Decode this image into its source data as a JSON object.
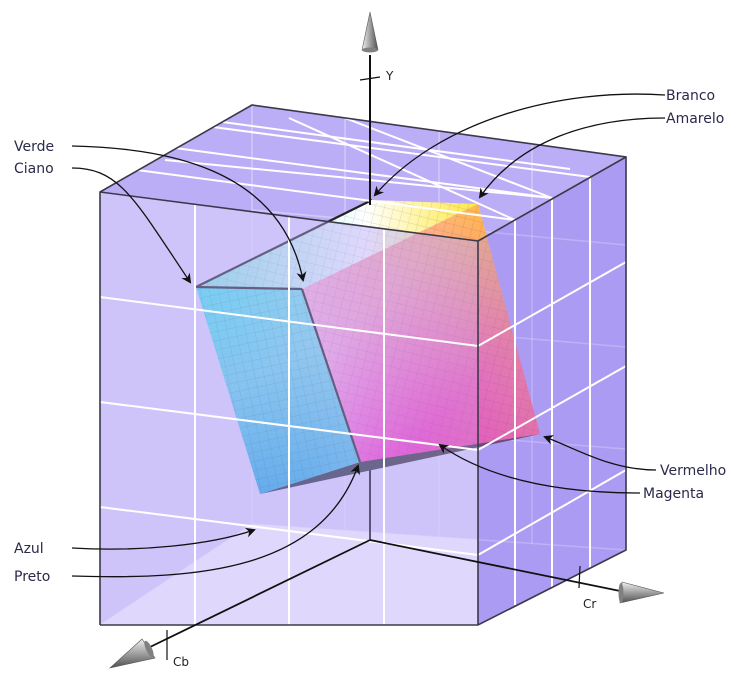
{
  "axes": {
    "y": "Y",
    "cr": "Cr",
    "cb": "Cb"
  },
  "corners": {
    "branco": "Branco",
    "amarelo": "Amarelo",
    "verde": "Verde",
    "ciano": "Ciano",
    "vermelho": "Vermelho",
    "magenta": "Magenta",
    "azul": "Azul",
    "preto": "Preto"
  },
  "colors": {
    "box_fill": "#b4a4f6",
    "box_front": "#bfb1fa",
    "grid_line": "#ffffff",
    "box_edge": "#3a3a4a",
    "white": "#ffffff",
    "yellow": "#ffe000",
    "green": "#c0f0d8",
    "cyan": "#30d8f0",
    "red": "#ff4080",
    "magenta": "#ff20c0",
    "blue": "#20b8e0",
    "black": "#202028"
  }
}
